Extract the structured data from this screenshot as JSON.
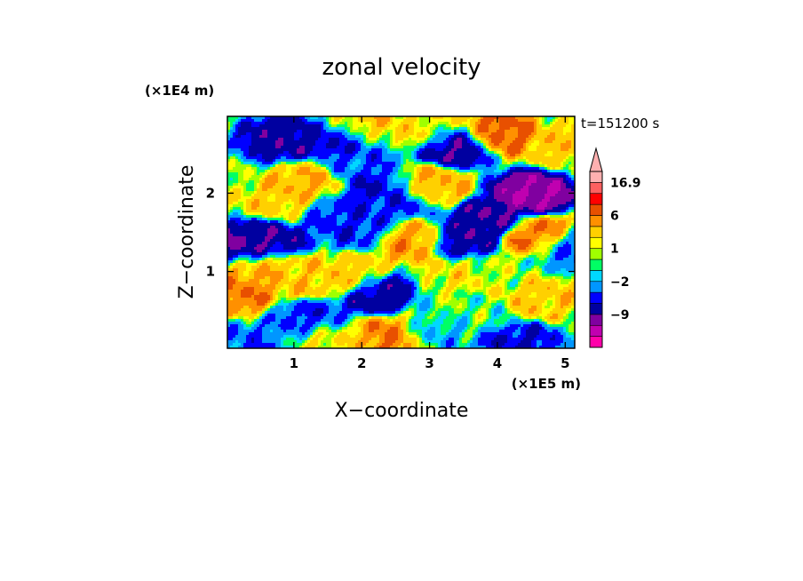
{
  "chart_data": {
    "type": "heatmap",
    "title": "zonal velocity",
    "xlabel": "X−coordinate",
    "ylabel": "Z−coordinate",
    "x_unit": "(×1E5 m)",
    "y_unit": "(×1E4 m)",
    "time_label": "t=151200 s",
    "xlim": [
      0.02,
      5.14
    ],
    "ylim": [
      0.02,
      2.98
    ],
    "x_ticks": [
      1,
      2,
      3,
      4,
      5
    ],
    "x_tick_labels": [
      "1",
      "2",
      "3",
      "4",
      "5"
    ],
    "y_ticks": [
      1,
      2
    ],
    "y_tick_labels": [
      "1",
      "2"
    ],
    "colorbar": {
      "levels": [
        -16,
        -12,
        -9,
        -6,
        -4,
        -2,
        -1,
        0,
        1,
        2,
        4,
        6,
        9,
        12,
        16.9
      ],
      "labeled_levels": [
        16.9,
        6,
        1,
        -2,
        -9
      ],
      "labels": [
        "16.9",
        "6",
        "1",
        "−2",
        "−9"
      ],
      "colors": [
        "#ff00aa",
        "#c000b0",
        "#8000a0",
        "#0000a0",
        "#0000ff",
        "#0096ff",
        "#00d8ff",
        "#00ff64",
        "#a0ff00",
        "#ffff00",
        "#ffd000",
        "#ff9000",
        "#e85000",
        "#ff0000",
        "#ff6060",
        "#ffb0b0"
      ],
      "extend": "max"
    },
    "field_features": [
      {
        "x": 0.2,
        "z": 1.3,
        "u": -10
      },
      {
        "x": 0.6,
        "z": 1.45,
        "u": -8
      },
      {
        "x": 0.8,
        "z": 2.7,
        "u": -8
      },
      {
        "x": 1.8,
        "z": 2.7,
        "u": -8
      },
      {
        "x": 2.2,
        "z": 2.05,
        "u": -6
      },
      {
        "x": 1.6,
        "z": 1.75,
        "u": -5
      },
      {
        "x": 2.5,
        "z": 1.9,
        "u": -5
      },
      {
        "x": 2.0,
        "z": 1.55,
        "u": -5
      },
      {
        "x": 3.4,
        "z": 2.6,
        "u": -9
      },
      {
        "x": 4.5,
        "z": 2.0,
        "u": -12
      },
      {
        "x": 3.9,
        "z": 1.65,
        "u": -9
      },
      {
        "x": 3.5,
        "z": 1.4,
        "u": -8
      },
      {
        "x": 2.3,
        "z": 0.7,
        "u": -8
      },
      {
        "x": 1.3,
        "z": 0.4,
        "u": -5
      },
      {
        "x": 5.0,
        "z": 1.3,
        "u": -4
      },
      {
        "x": 4.3,
        "z": 0.1,
        "u": -6
      },
      {
        "x": 0.3,
        "z": 0.05,
        "u": -4
      },
      {
        "x": 2.9,
        "z": 0.25,
        "u": -3
      },
      {
        "x": 2.0,
        "z": 2.4,
        "u": -4
      },
      {
        "x": 4.0,
        "z": 2.75,
        "u": 7
      },
      {
        "x": 2.0,
        "z": 2.8,
        "u": 5
      },
      {
        "x": 4.55,
        "z": 1.45,
        "u": 7
      },
      {
        "x": 0.15,
        "z": 0.75,
        "u": 6
      },
      {
        "x": 0.4,
        "z": 1.05,
        "u": 4
      },
      {
        "x": 2.75,
        "z": 1.4,
        "u": 5
      },
      {
        "x": 3.0,
        "z": 2.1,
        "u": 4
      },
      {
        "x": 2.5,
        "z": 0.2,
        "u": 7
      },
      {
        "x": 4.6,
        "z": 0.65,
        "u": 3
      },
      {
        "x": 0.8,
        "z": 1.85,
        "u": 3
      },
      {
        "x": 1.2,
        "z": 2.1,
        "u": 4
      },
      {
        "x": 1.2,
        "z": 0.9,
        "u": 3
      },
      {
        "x": 1.8,
        "z": 0.95,
        "u": 3
      },
      {
        "x": 3.4,
        "z": 0.95,
        "u": 2
      },
      {
        "x": 5.0,
        "z": 2.6,
        "u": 3
      },
      {
        "x": 3.7,
        "z": 0.45,
        "u": -0.5
      },
      {
        "x": 3.2,
        "z": 0.55,
        "u": 0
      },
      {
        "x": 4.0,
        "z": 1.0,
        "u": 0.5
      },
      {
        "x": 2.9,
        "z": 2.8,
        "u": 2
      },
      {
        "x": 1.6,
        "z": 0.15,
        "u": 2
      }
    ]
  }
}
